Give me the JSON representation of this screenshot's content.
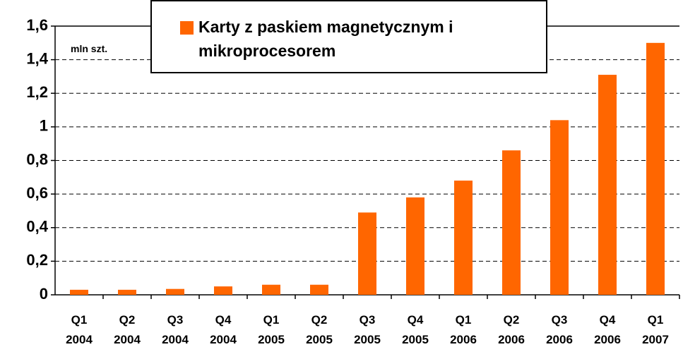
{
  "chart_data": {
    "type": "bar",
    "annotation": "mln szt.",
    "categories": [
      "Q1 2004",
      "Q2 2004",
      "Q3 2004",
      "Q4 2004",
      "Q1 2005",
      "Q2 2005",
      "Q3 2005",
      "Q4 2005",
      "Q1 2006",
      "Q2 2006",
      "Q3 2006",
      "Q4 2006",
      "Q1 2007"
    ],
    "series": [
      {
        "name": "Karty z paskiem magnetycznym i mikroprocesorem",
        "color": "#ff6600",
        "values": [
          0.03,
          0.03,
          0.035,
          0.05,
          0.06,
          0.06,
          0.49,
          0.58,
          0.68,
          0.86,
          1.04,
          1.31,
          1.5
        ]
      }
    ],
    "ylim": [
      0,
      1.6
    ],
    "yticks": [
      0,
      {
        "value": 0.2,
        "label": "0,2"
      },
      {
        "value": 0.4,
        "label": "0,4"
      },
      {
        "value": 0.6,
        "label": "0,6"
      },
      {
        "value": 0.8,
        "label": "0,8"
      },
      1,
      {
        "value": 1.2,
        "label": "1,2"
      },
      {
        "value": 1.4,
        "label": "1,4"
      },
      {
        "value": 1.6,
        "label": "1,6"
      }
    ],
    "grid": true,
    "legend": "top"
  }
}
